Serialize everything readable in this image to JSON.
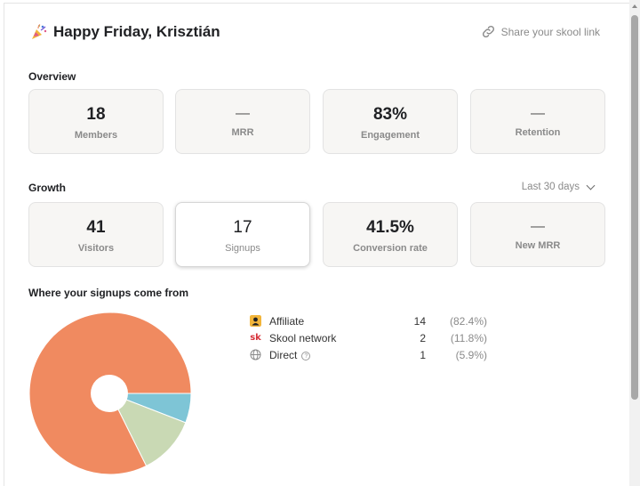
{
  "header": {
    "title": "Happy Friday, Krisztián",
    "share_link_label": "Share your skool link"
  },
  "overview": {
    "label": "Overview",
    "cards": [
      {
        "value": "18",
        "label": "Members"
      },
      {
        "value": "—",
        "label": "MRR"
      },
      {
        "value": "83%",
        "label": "Engagement"
      },
      {
        "value": "—",
        "label": "Retention"
      }
    ]
  },
  "growth": {
    "label": "Growth",
    "period_selected": "Last 30 days",
    "cards": [
      {
        "value": "41",
        "label": "Visitors"
      },
      {
        "value": "17",
        "label": "Signups"
      },
      {
        "value": "41.5%",
        "label": "Conversion rate"
      },
      {
        "value": "—",
        "label": "New MRR"
      }
    ]
  },
  "sources": {
    "label": "Where your signups come from",
    "items": [
      {
        "name": "Affiliate",
        "count": "14",
        "pct": "(82.4%)"
      },
      {
        "name": "Skool network",
        "count": "2",
        "pct": "(11.8%)"
      },
      {
        "name": "Direct",
        "count": "1",
        "pct": "(5.9%)"
      }
    ]
  },
  "chart_data": {
    "type": "pie",
    "categories": [
      "Affiliate",
      "Skool network",
      "Direct"
    ],
    "values": [
      14,
      2,
      1
    ],
    "colors": [
      "#f08a60",
      "#c9d9b4",
      "#7ec5d6"
    ]
  },
  "icons": {
    "share": "link-icon",
    "party": "party-popper-icon",
    "affiliate": "person-icon",
    "skool": "skool-sk-icon",
    "direct": "globe-icon",
    "help": "question-circle-icon"
  }
}
